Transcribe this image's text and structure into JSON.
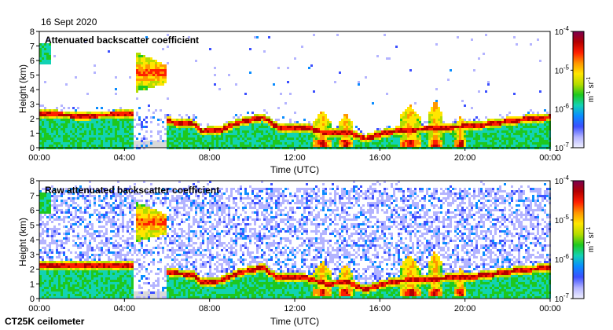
{
  "date_label": "16 Sept 2020",
  "instrument_label": "CT25K ceilometer",
  "colors": {
    "axis": "#000000",
    "missing": "#d9d9d9",
    "colormap": [
      "#f0f0ff",
      "#b4b4ff",
      "#3c50ff",
      "#0a8cff",
      "#12d2b4",
      "#1ec81e",
      "#b4dc00",
      "#ffe600",
      "#ff9600",
      "#ff1e00",
      "#b40000",
      "#7a0050"
    ]
  },
  "chart_data": [
    {
      "type": "heatmap",
      "title": "Attenuated backscatter coefficient",
      "xlabel": "Time (UTC)",
      "ylabel": "Height (km)",
      "x_ticks": [
        "00:00",
        "04:00",
        "08:00",
        "12:00",
        "16:00",
        "20:00",
        "00:00"
      ],
      "y_ticks": [
        "0",
        "1",
        "2",
        "3",
        "4",
        "5",
        "6",
        "7",
        "8"
      ],
      "xlim_hours": [
        0,
        24
      ],
      "ylim_km": [
        0,
        8
      ],
      "colorbar": {
        "scale": "log",
        "range": [
          1e-07,
          0.0001
        ],
        "tick_labels": [
          "10^-7",
          "10^-6",
          "10^-5",
          "10^-4"
        ],
        "unit_label": "m^-1 sr^-1"
      },
      "noise_level": "low",
      "grid": false
    },
    {
      "type": "heatmap",
      "title": "Raw attenuated backscatter coefficient",
      "xlabel": "Time (UTC)",
      "ylabel": "Height (km)",
      "x_ticks": [
        "00:00",
        "04:00",
        "08:00",
        "12:00",
        "16:00",
        "20:00",
        "00:00"
      ],
      "y_ticks": [
        "0",
        "1",
        "2",
        "3",
        "4",
        "5",
        "6",
        "7",
        "8"
      ],
      "xlim_hours": [
        0,
        24
      ],
      "ylim_km": [
        0,
        8
      ],
      "colorbar": {
        "scale": "log",
        "range": [
          1e-07,
          0.0001
        ],
        "tick_labels": [
          "10^-7",
          "10^-6",
          "10^-5",
          "10^-4"
        ],
        "unit_label": "m^-1 sr^-1"
      },
      "noise_level": "high",
      "grid": false
    }
  ],
  "features": {
    "boundary_layer_top_km": [
      [
        0.3,
        2.3
      ],
      [
        2.0,
        2.2
      ],
      [
        4.3,
        2.3
      ],
      [
        6.5,
        1.7
      ],
      [
        7.3,
        1.6
      ],
      [
        7.6,
        1.1
      ],
      [
        8.5,
        1.2
      ],
      [
        9.3,
        1.7
      ],
      [
        10.5,
        2.1
      ],
      [
        11.2,
        1.4
      ],
      [
        12.5,
        1.4
      ],
      [
        13.5,
        1.0
      ],
      [
        14.5,
        1.1
      ],
      [
        15.3,
        0.6
      ],
      [
        16.2,
        1.0
      ],
      [
        17.0,
        1.2
      ],
      [
        18.3,
        1.3
      ],
      [
        19.3,
        1.4
      ],
      [
        20.5,
        1.5
      ],
      [
        21.5,
        1.7
      ],
      [
        22.5,
        1.9
      ],
      [
        24.0,
        2.1
      ]
    ],
    "elevated_layer": {
      "start_h": 4.5,
      "end_h": 6.0,
      "base_km": 3.8,
      "top_km": 6.6
    },
    "early_layer": {
      "start_h": 0.0,
      "end_h": 0.5,
      "base_km": 5.8,
      "top_km": 7.2
    },
    "rain_gap": {
      "start_h": 4.4,
      "end_h": 6.2
    },
    "convective_clouds": [
      {
        "center_h": 13.3,
        "width_h": 0.8,
        "top_km": 2.6
      },
      {
        "center_h": 14.4,
        "width_h": 0.7,
        "top_km": 2.4
      },
      {
        "center_h": 17.4,
        "width_h": 1.0,
        "top_km": 3.0
      },
      {
        "center_h": 18.6,
        "width_h": 0.7,
        "top_km": 3.3
      },
      {
        "center_h": 19.8,
        "width_h": 0.5,
        "top_km": 2.2
      }
    ]
  }
}
